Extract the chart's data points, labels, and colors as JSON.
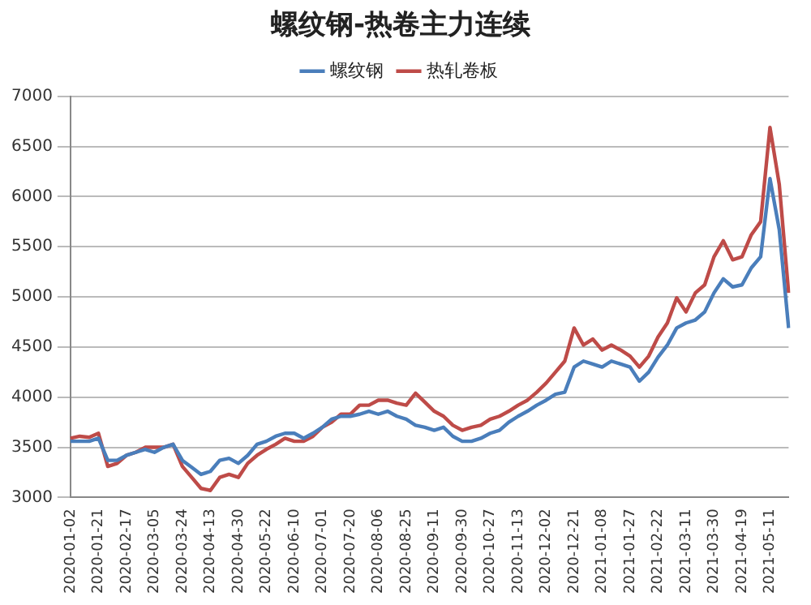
{
  "chart_data": {
    "type": "line",
    "title": "螺纹钢-热卷主力连续",
    "categories": [
      "2020-01-02",
      null,
      null,
      "2020-01-21",
      null,
      null,
      "2020-02-17",
      null,
      null,
      "2020-03-05",
      null,
      null,
      "2020-03-24",
      null,
      null,
      "2020-04-13",
      null,
      null,
      "2020-04-30",
      null,
      null,
      "2020-05-22",
      null,
      null,
      "2020-06-10",
      null,
      null,
      "2020-07-01",
      null,
      null,
      "2020-07-20",
      null,
      null,
      "2020-08-06",
      null,
      null,
      "2020-08-25",
      null,
      null,
      "2020-09-11",
      null,
      null,
      "2020-09-30",
      null,
      null,
      "2020-10-27",
      null,
      null,
      "2020-11-13",
      null,
      null,
      "2020-12-02",
      null,
      null,
      "2020-12-21",
      null,
      null,
      "2021-01-08",
      null,
      null,
      "2021-01-27",
      null,
      null,
      "2021-02-22",
      null,
      null,
      "2021-03-11",
      null,
      null,
      "2021-03-30",
      null,
      null,
      "2021-04-19",
      null,
      null,
      "2021-05-11",
      null,
      null
    ],
    "series": [
      {
        "name": "螺纹钢",
        "color": "#4a7ebb",
        "values": [
          3560,
          3560,
          3560,
          3590,
          3370,
          3370,
          3420,
          3450,
          3480,
          3450,
          3500,
          3530,
          3370,
          3300,
          3230,
          3260,
          3370,
          3390,
          3340,
          3420,
          3530,
          3560,
          3610,
          3640,
          3640,
          3590,
          3640,
          3700,
          3780,
          3810,
          3810,
          3830,
          3860,
          3830,
          3860,
          3810,
          3780,
          3720,
          3700,
          3670,
          3700,
          3610,
          3560,
          3560,
          3590,
          3640,
          3670,
          3750,
          3810,
          3860,
          3920,
          3970,
          4030,
          4050,
          4300,
          4360,
          4330,
          4300,
          4360,
          4330,
          4300,
          4160,
          4250,
          4400,
          4520,
          4690,
          4740,
          4770,
          4850,
          5040,
          5180,
          5100,
          5120,
          5290,
          5400,
          6180,
          5670,
          4690
        ]
      },
      {
        "name": "热轧卷板",
        "color": "#be4b48",
        "values": [
          3590,
          3610,
          3600,
          3640,
          3310,
          3340,
          3420,
          3450,
          3500,
          3500,
          3500,
          3530,
          3310,
          3200,
          3090,
          3070,
          3200,
          3230,
          3200,
          3340,
          3420,
          3480,
          3530,
          3590,
          3560,
          3560,
          3610,
          3700,
          3750,
          3830,
          3830,
          3920,
          3920,
          3970,
          3970,
          3940,
          3920,
          4040,
          3950,
          3860,
          3810,
          3720,
          3670,
          3700,
          3720,
          3780,
          3810,
          3860,
          3920,
          3970,
          4050,
          4140,
          4250,
          4360,
          4690,
          4520,
          4580,
          4470,
          4520,
          4470,
          4410,
          4300,
          4410,
          4600,
          4740,
          4990,
          4850,
          5040,
          5120,
          5400,
          5560,
          5370,
          5400,
          5620,
          5750,
          6690,
          6120,
          5040
        ]
      }
    ],
    "ylim": [
      3000,
      7000
    ],
    "yticks": [
      3000,
      3500,
      4000,
      4500,
      5000,
      5500,
      6000,
      6500,
      7000
    ],
    "grid": "y",
    "legend": "top",
    "marker": "none",
    "line_style": "solid"
  }
}
